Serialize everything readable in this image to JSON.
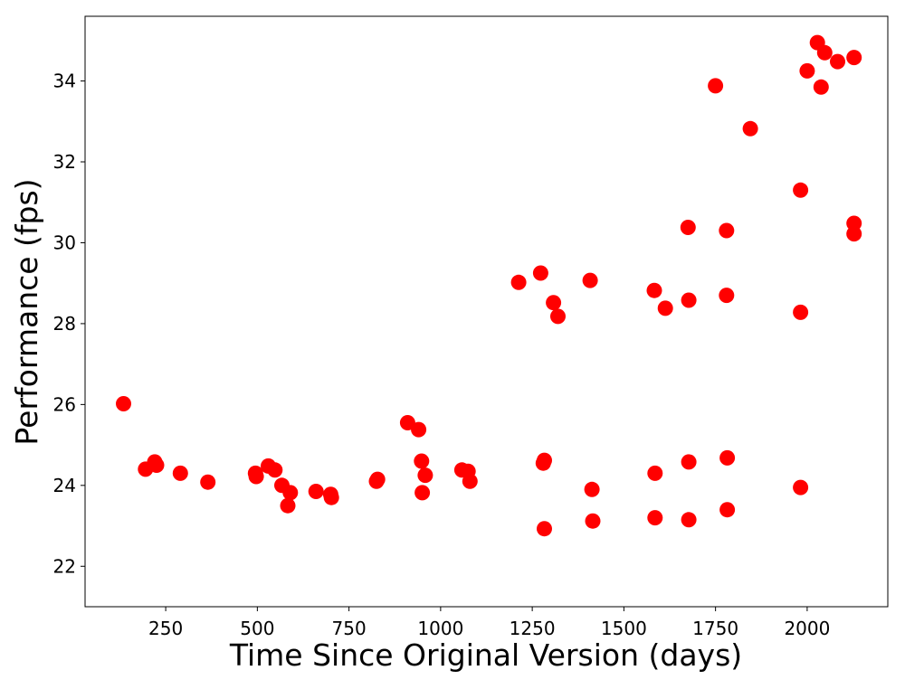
{
  "chart_data": {
    "type": "scatter",
    "title": "",
    "xlabel": "Time Since Original Version (days)",
    "ylabel": "Performance (fps)",
    "xlim": [
      30,
      2220
    ],
    "ylim": [
      21,
      35.6
    ],
    "xticks": [
      250,
      500,
      750,
      1000,
      1250,
      1500,
      1750,
      2000
    ],
    "yticks": [
      22,
      24,
      26,
      28,
      30,
      32,
      34
    ],
    "grid": false,
    "legend": "none",
    "marker_color": "#ff0000",
    "series": [
      {
        "points": [
          [
            135,
            26.02
          ],
          [
            195,
            24.4
          ],
          [
            220,
            24.58
          ],
          [
            225,
            24.5
          ],
          [
            290,
            24.3
          ],
          [
            365,
            24.08
          ],
          [
            495,
            24.3
          ],
          [
            497,
            24.22
          ],
          [
            530,
            24.48
          ],
          [
            548,
            24.38
          ],
          [
            567,
            24.0
          ],
          [
            583,
            23.5
          ],
          [
            590,
            23.82
          ],
          [
            660,
            23.85
          ],
          [
            700,
            23.78
          ],
          [
            702,
            23.7
          ],
          [
            825,
            24.1
          ],
          [
            828,
            24.15
          ],
          [
            910,
            25.55
          ],
          [
            940,
            25.38
          ],
          [
            948,
            24.6
          ],
          [
            950,
            23.82
          ],
          [
            958,
            24.25
          ],
          [
            1058,
            24.38
          ],
          [
            1075,
            24.35
          ],
          [
            1080,
            24.1
          ],
          [
            1213,
            29.02
          ],
          [
            1273,
            29.25
          ],
          [
            1280,
            24.55
          ],
          [
            1283,
            24.62
          ],
          [
            1283,
            22.93
          ],
          [
            1308,
            28.52
          ],
          [
            1320,
            28.18
          ],
          [
            1408,
            29.07
          ],
          [
            1413,
            23.9
          ],
          [
            1415,
            23.12
          ],
          [
            1583,
            28.82
          ],
          [
            1585,
            24.3
          ],
          [
            1585,
            23.2
          ],
          [
            1613,
            28.38
          ],
          [
            1675,
            30.38
          ],
          [
            1677,
            28.58
          ],
          [
            1677,
            24.58
          ],
          [
            1677,
            23.15
          ],
          [
            1750,
            33.88
          ],
          [
            1780,
            30.3
          ],
          [
            1780,
            28.7
          ],
          [
            1782,
            24.68
          ],
          [
            1782,
            23.4
          ],
          [
            1845,
            32.82
          ],
          [
            1982,
            31.3
          ],
          [
            1982,
            28.28
          ],
          [
            1982,
            23.95
          ],
          [
            2000,
            34.25
          ],
          [
            2028,
            34.95
          ],
          [
            2038,
            33.85
          ],
          [
            2048,
            34.7
          ],
          [
            2083,
            34.48
          ],
          [
            2128,
            34.58
          ],
          [
            2128,
            30.48
          ],
          [
            2128,
            30.22
          ]
        ]
      }
    ]
  }
}
